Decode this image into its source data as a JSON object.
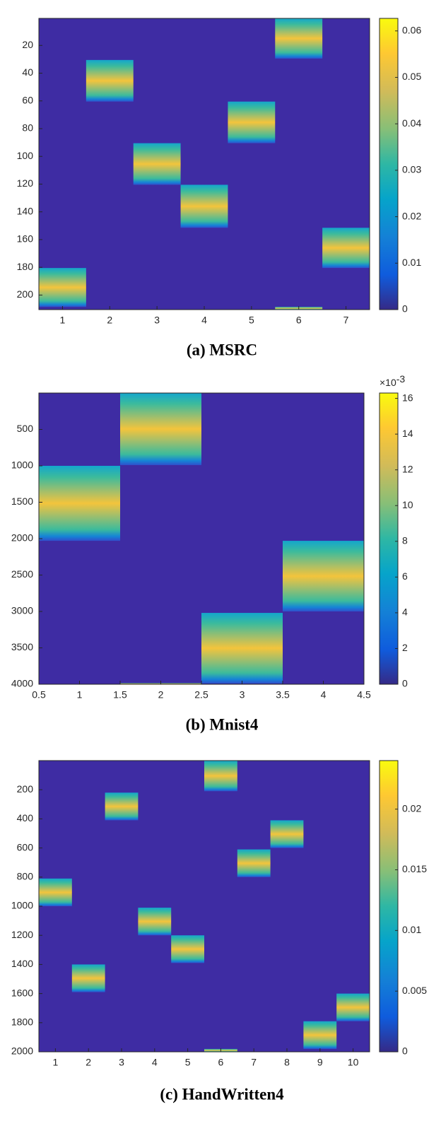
{
  "chart_data": [
    {
      "type": "heatmap",
      "title": "(a) MSRC",
      "background": "#3e2ca3",
      "xlim": [
        0.5,
        7.5
      ],
      "xticks": [
        1,
        2,
        3,
        4,
        5,
        6,
        7
      ],
      "ylim": [
        0.5,
        210.5
      ],
      "yticks": [
        20,
        40,
        60,
        80,
        100,
        120,
        140,
        160,
        180,
        200
      ],
      "blocks": [
        {
          "x": 1,
          "rows": [
            180.5,
            208.5
          ]
        },
        {
          "x": 2,
          "rows": [
            30.5,
            60.5
          ]
        },
        {
          "x": 3,
          "rows": [
            90.5,
            120.5
          ]
        },
        {
          "x": 4,
          "rows": [
            120.5,
            151.5
          ]
        },
        {
          "x": 5,
          "rows": [
            60.5,
            90.5
          ]
        },
        {
          "x": 6,
          "rows": [
            0.5,
            29.5
          ]
        },
        {
          "x": 6,
          "rows": [
            208.5,
            210.5
          ]
        },
        {
          "x": 7,
          "rows": [
            151.5,
            180.5
          ]
        }
      ],
      "clim": [
        0,
        0.0627
      ],
      "cticks": [
        0,
        0.01,
        0.02,
        0.03,
        0.04,
        0.05,
        0.06
      ]
    },
    {
      "type": "heatmap",
      "title": "(b) Mnist4",
      "background": "#3e2ca3",
      "xlim": [
        0.5,
        4.5
      ],
      "xticks": [
        0.5,
        1,
        1.5,
        2,
        2.5,
        3,
        3.5,
        4,
        4.5
      ],
      "ylim": [
        0,
        4000
      ],
      "yticks": [
        500,
        1000,
        1500,
        2000,
        2500,
        3000,
        3500,
        4000
      ],
      "blocks": [
        {
          "x": 1,
          "rows": [
            1000,
            2030
          ]
        },
        {
          "x": 2,
          "rows": [
            0,
            990
          ]
        },
        {
          "x": 2,
          "rows": [
            3985,
            4000
          ]
        },
        {
          "x": 3,
          "rows": [
            3020,
            3990
          ]
        },
        {
          "x": 4,
          "rows": [
            2030,
            3000
          ]
        }
      ],
      "clim": [
        0,
        16.3
      ],
      "cticks": [
        0,
        2,
        4,
        6,
        8,
        10,
        12,
        14,
        16
      ],
      "cscale_label": "×10",
      "cscale_exp": "-3"
    },
    {
      "type": "heatmap",
      "title": "(c) HandWritten4",
      "background": "#3e2ca3",
      "xlim": [
        0.5,
        10.5
      ],
      "xticks": [
        1,
        2,
        3,
        4,
        5,
        6,
        7,
        8,
        9,
        10
      ],
      "ylim": [
        0,
        2000
      ],
      "yticks": [
        200,
        400,
        600,
        800,
        1000,
        1200,
        1400,
        1600,
        1800,
        2000
      ],
      "blocks": [
        {
          "x": 1,
          "rows": [
            810,
            1000
          ]
        },
        {
          "x": 2,
          "rows": [
            1400,
            1590
          ]
        },
        {
          "x": 3,
          "rows": [
            220,
            410
          ]
        },
        {
          "x": 4,
          "rows": [
            1010,
            1200
          ]
        },
        {
          "x": 5,
          "rows": [
            1200,
            1390
          ]
        },
        {
          "x": 6,
          "rows": [
            0,
            210
          ]
        },
        {
          "x": 6,
          "rows": [
            1980,
            2000
          ]
        },
        {
          "x": 7,
          "rows": [
            610,
            800
          ]
        },
        {
          "x": 8,
          "rows": [
            410,
            600
          ]
        },
        {
          "x": 9,
          "rows": [
            1790,
            1980
          ]
        },
        {
          "x": 10,
          "rows": [
            1600,
            1790
          ]
        }
      ],
      "clim": [
        0,
        0.024
      ],
      "cticks": [
        0,
        0.005,
        0.01,
        0.015,
        0.02
      ]
    }
  ]
}
